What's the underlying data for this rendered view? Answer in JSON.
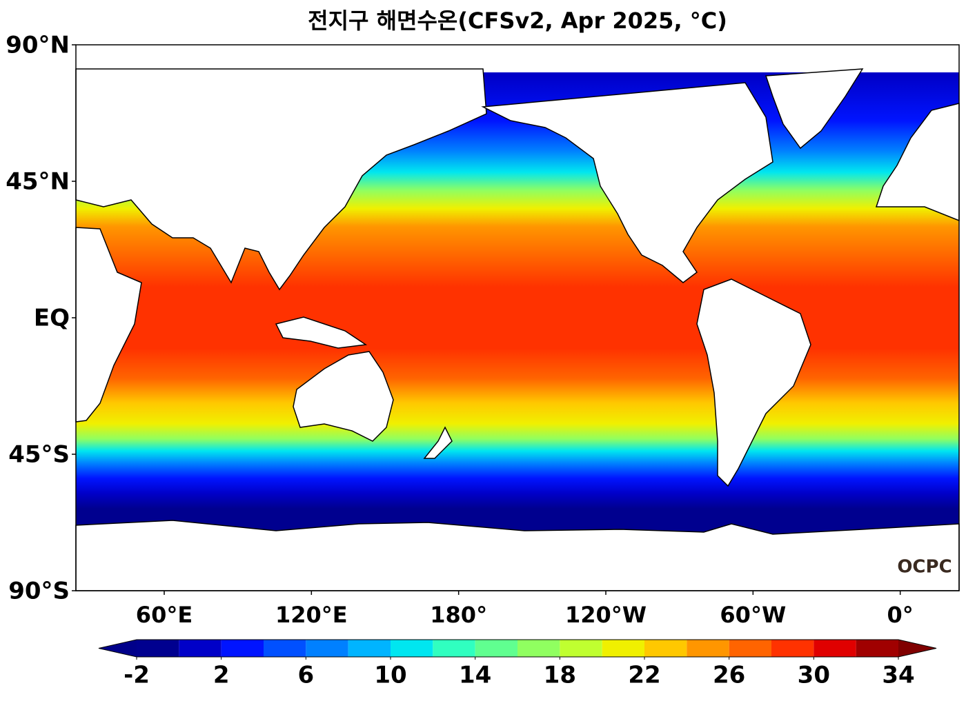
{
  "title": "전지구 해면수온(CFSv2, Apr 2025, °C)",
  "map": {
    "lonlim": [
      24,
      384
    ],
    "latlim": [
      -90,
      90
    ],
    "lon_ticks": [
      {
        "value": 60,
        "label": "60°E"
      },
      {
        "value": 120,
        "label": "120°E"
      },
      {
        "value": 180,
        "label": "180°"
      },
      {
        "value": 240,
        "label": "120°W"
      },
      {
        "value": 300,
        "label": "60°W"
      },
      {
        "value": 360,
        "label": "0°"
      }
    ],
    "lat_ticks": [
      {
        "value": 90,
        "label": "90°N"
      },
      {
        "value": 45,
        "label": "45°N"
      },
      {
        "value": 0,
        "label": "EQ"
      },
      {
        "value": -45,
        "label": "45°S"
      },
      {
        "value": -90,
        "label": "90°S"
      }
    ]
  },
  "colorbar": {
    "levels": [
      -2,
      0,
      2,
      4,
      6,
      8,
      10,
      12,
      14,
      16,
      18,
      20,
      22,
      24,
      26,
      28,
      30,
      32,
      34
    ],
    "colors": [
      "#00008f",
      "#0000c8",
      "#0014ff",
      "#0050ff",
      "#0080ff",
      "#00b4ff",
      "#00e6f0",
      "#30ffc0",
      "#60ff90",
      "#90ff60",
      "#c0ff30",
      "#f0f000",
      "#ffc800",
      "#ff9600",
      "#ff6400",
      "#ff3200",
      "#e00000",
      "#a00000"
    ],
    "under_color": "#00008a",
    "over_color": "#800000",
    "ticks": [
      -2,
      2,
      6,
      10,
      14,
      18,
      22,
      26,
      30,
      34
    ]
  },
  "logo": "OCPC"
}
